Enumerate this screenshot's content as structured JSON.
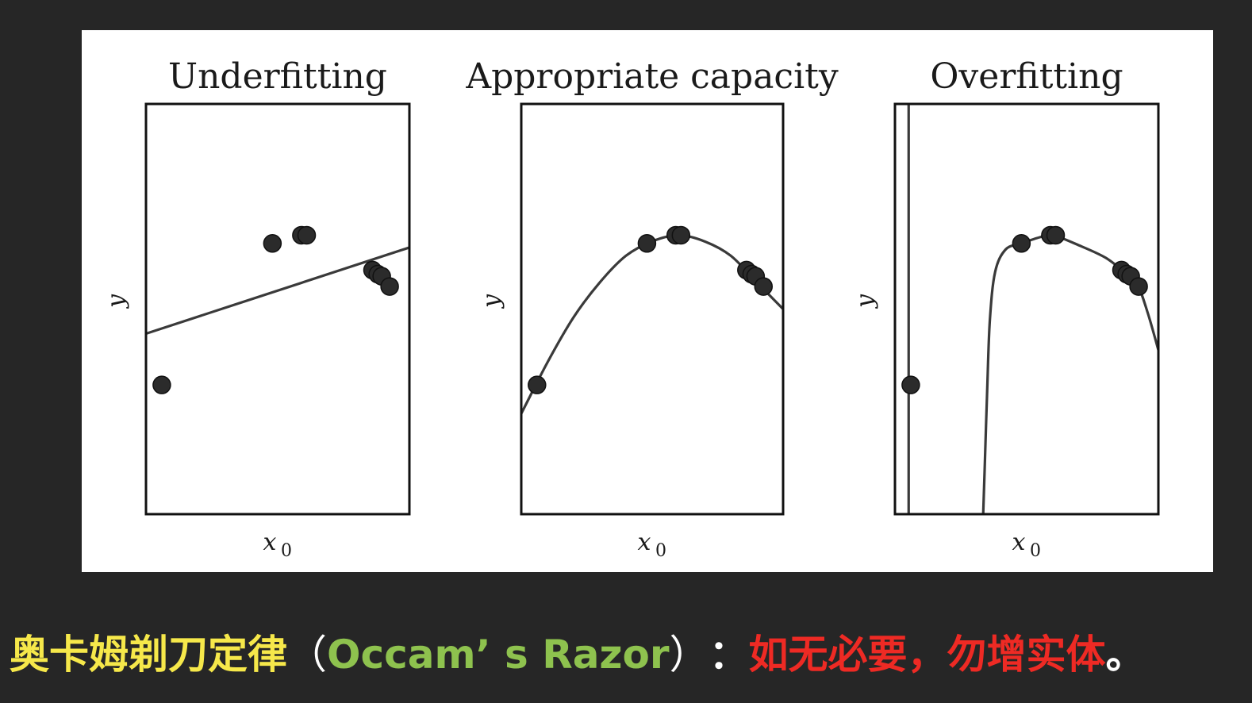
{
  "figure": {
    "charts": [
      {
        "title": "Underfitting",
        "xlabel": "x",
        "xlabel_sub": "0",
        "ylabel": "y"
      },
      {
        "title": "Appropriate capacity",
        "xlabel": "x",
        "xlabel_sub": "0",
        "ylabel": "y"
      },
      {
        "title": "Overfitting",
        "xlabel": "x",
        "xlabel_sub": "0",
        "ylabel": "y"
      }
    ]
  },
  "caption": {
    "term": "奥卡姆剃刀定律",
    "open_paren": "（",
    "english": "Occam’ s Razor",
    "close_paren": "）",
    "colon": "：",
    "principle": "如无必要，勿增实体",
    "period": "。"
  },
  "colors": {
    "background": "#262626",
    "panel": "#ffffff",
    "term": "#f6e84a",
    "english": "#8ec24e",
    "principle": "#ee2a24"
  },
  "chart_data": [
    {
      "type": "scatter",
      "title": "Underfitting",
      "xlabel": "x0",
      "ylabel": "y",
      "xlim": [
        0,
        1
      ],
      "ylim": [
        0,
        1
      ],
      "points": [
        {
          "x": 0.06,
          "y": 0.315
        },
        {
          "x": 0.48,
          "y": 0.66
        },
        {
          "x": 0.59,
          "y": 0.68
        },
        {
          "x": 0.61,
          "y": 0.68
        },
        {
          "x": 0.86,
          "y": 0.595
        },
        {
          "x": 0.88,
          "y": 0.585
        },
        {
          "x": 0.895,
          "y": 0.58
        },
        {
          "x": 0.925,
          "y": 0.555
        }
      ],
      "fit": {
        "model": "linear",
        "samples": [
          [
            0,
            0.44
          ],
          [
            1,
            0.65
          ]
        ]
      }
    },
    {
      "type": "scatter",
      "title": "Appropriate capacity",
      "xlabel": "x0",
      "ylabel": "y",
      "xlim": [
        0,
        1
      ],
      "ylim": [
        0,
        1
      ],
      "points": [
        {
          "x": 0.06,
          "y": 0.315
        },
        {
          "x": 0.48,
          "y": 0.66
        },
        {
          "x": 0.59,
          "y": 0.68
        },
        {
          "x": 0.61,
          "y": 0.68
        },
        {
          "x": 0.86,
          "y": 0.595
        },
        {
          "x": 0.88,
          "y": 0.585
        },
        {
          "x": 0.895,
          "y": 0.58
        },
        {
          "x": 0.925,
          "y": 0.555
        }
      ],
      "fit": {
        "model": "quadratic",
        "samples": [
          [
            0,
            0.245
          ],
          [
            0.1,
            0.37
          ],
          [
            0.2,
            0.48
          ],
          [
            0.3,
            0.565
          ],
          [
            0.4,
            0.63
          ],
          [
            0.5,
            0.665
          ],
          [
            0.6,
            0.68
          ],
          [
            0.7,
            0.665
          ],
          [
            0.8,
            0.63
          ],
          [
            0.9,
            0.565
          ],
          [
            1,
            0.5
          ]
        ]
      }
    },
    {
      "type": "scatter",
      "title": "Overfitting",
      "xlabel": "x0",
      "ylabel": "y",
      "xlim": [
        0,
        1
      ],
      "ylim": [
        0,
        1
      ],
      "points": [
        {
          "x": 0.06,
          "y": 0.315
        },
        {
          "x": 0.48,
          "y": 0.66
        },
        {
          "x": 0.59,
          "y": 0.68
        },
        {
          "x": 0.61,
          "y": 0.68
        },
        {
          "x": 0.86,
          "y": 0.595
        },
        {
          "x": 0.88,
          "y": 0.585
        },
        {
          "x": 0.895,
          "y": 0.58
        },
        {
          "x": 0.925,
          "y": 0.555
        }
      ],
      "fit": {
        "model": "high-degree polynomial",
        "segments": [
          [
            [
              0.052,
              0
            ],
            [
              0.052,
              1
            ]
          ],
          [
            [
              0.335,
              0
            ],
            [
              0.34,
              0.1
            ],
            [
              0.35,
              0.3
            ],
            [
              0.36,
              0.47
            ],
            [
              0.38,
              0.59
            ],
            [
              0.42,
              0.645
            ],
            [
              0.48,
              0.66
            ],
            [
              0.55,
              0.675
            ],
            [
              0.6,
              0.68
            ],
            [
              0.7,
              0.655
            ],
            [
              0.8,
              0.625
            ],
            [
              0.87,
              0.59
            ],
            [
              0.92,
              0.56
            ],
            [
              0.96,
              0.49
            ],
            [
              1,
              0.4
            ]
          ]
        ]
      }
    }
  ]
}
